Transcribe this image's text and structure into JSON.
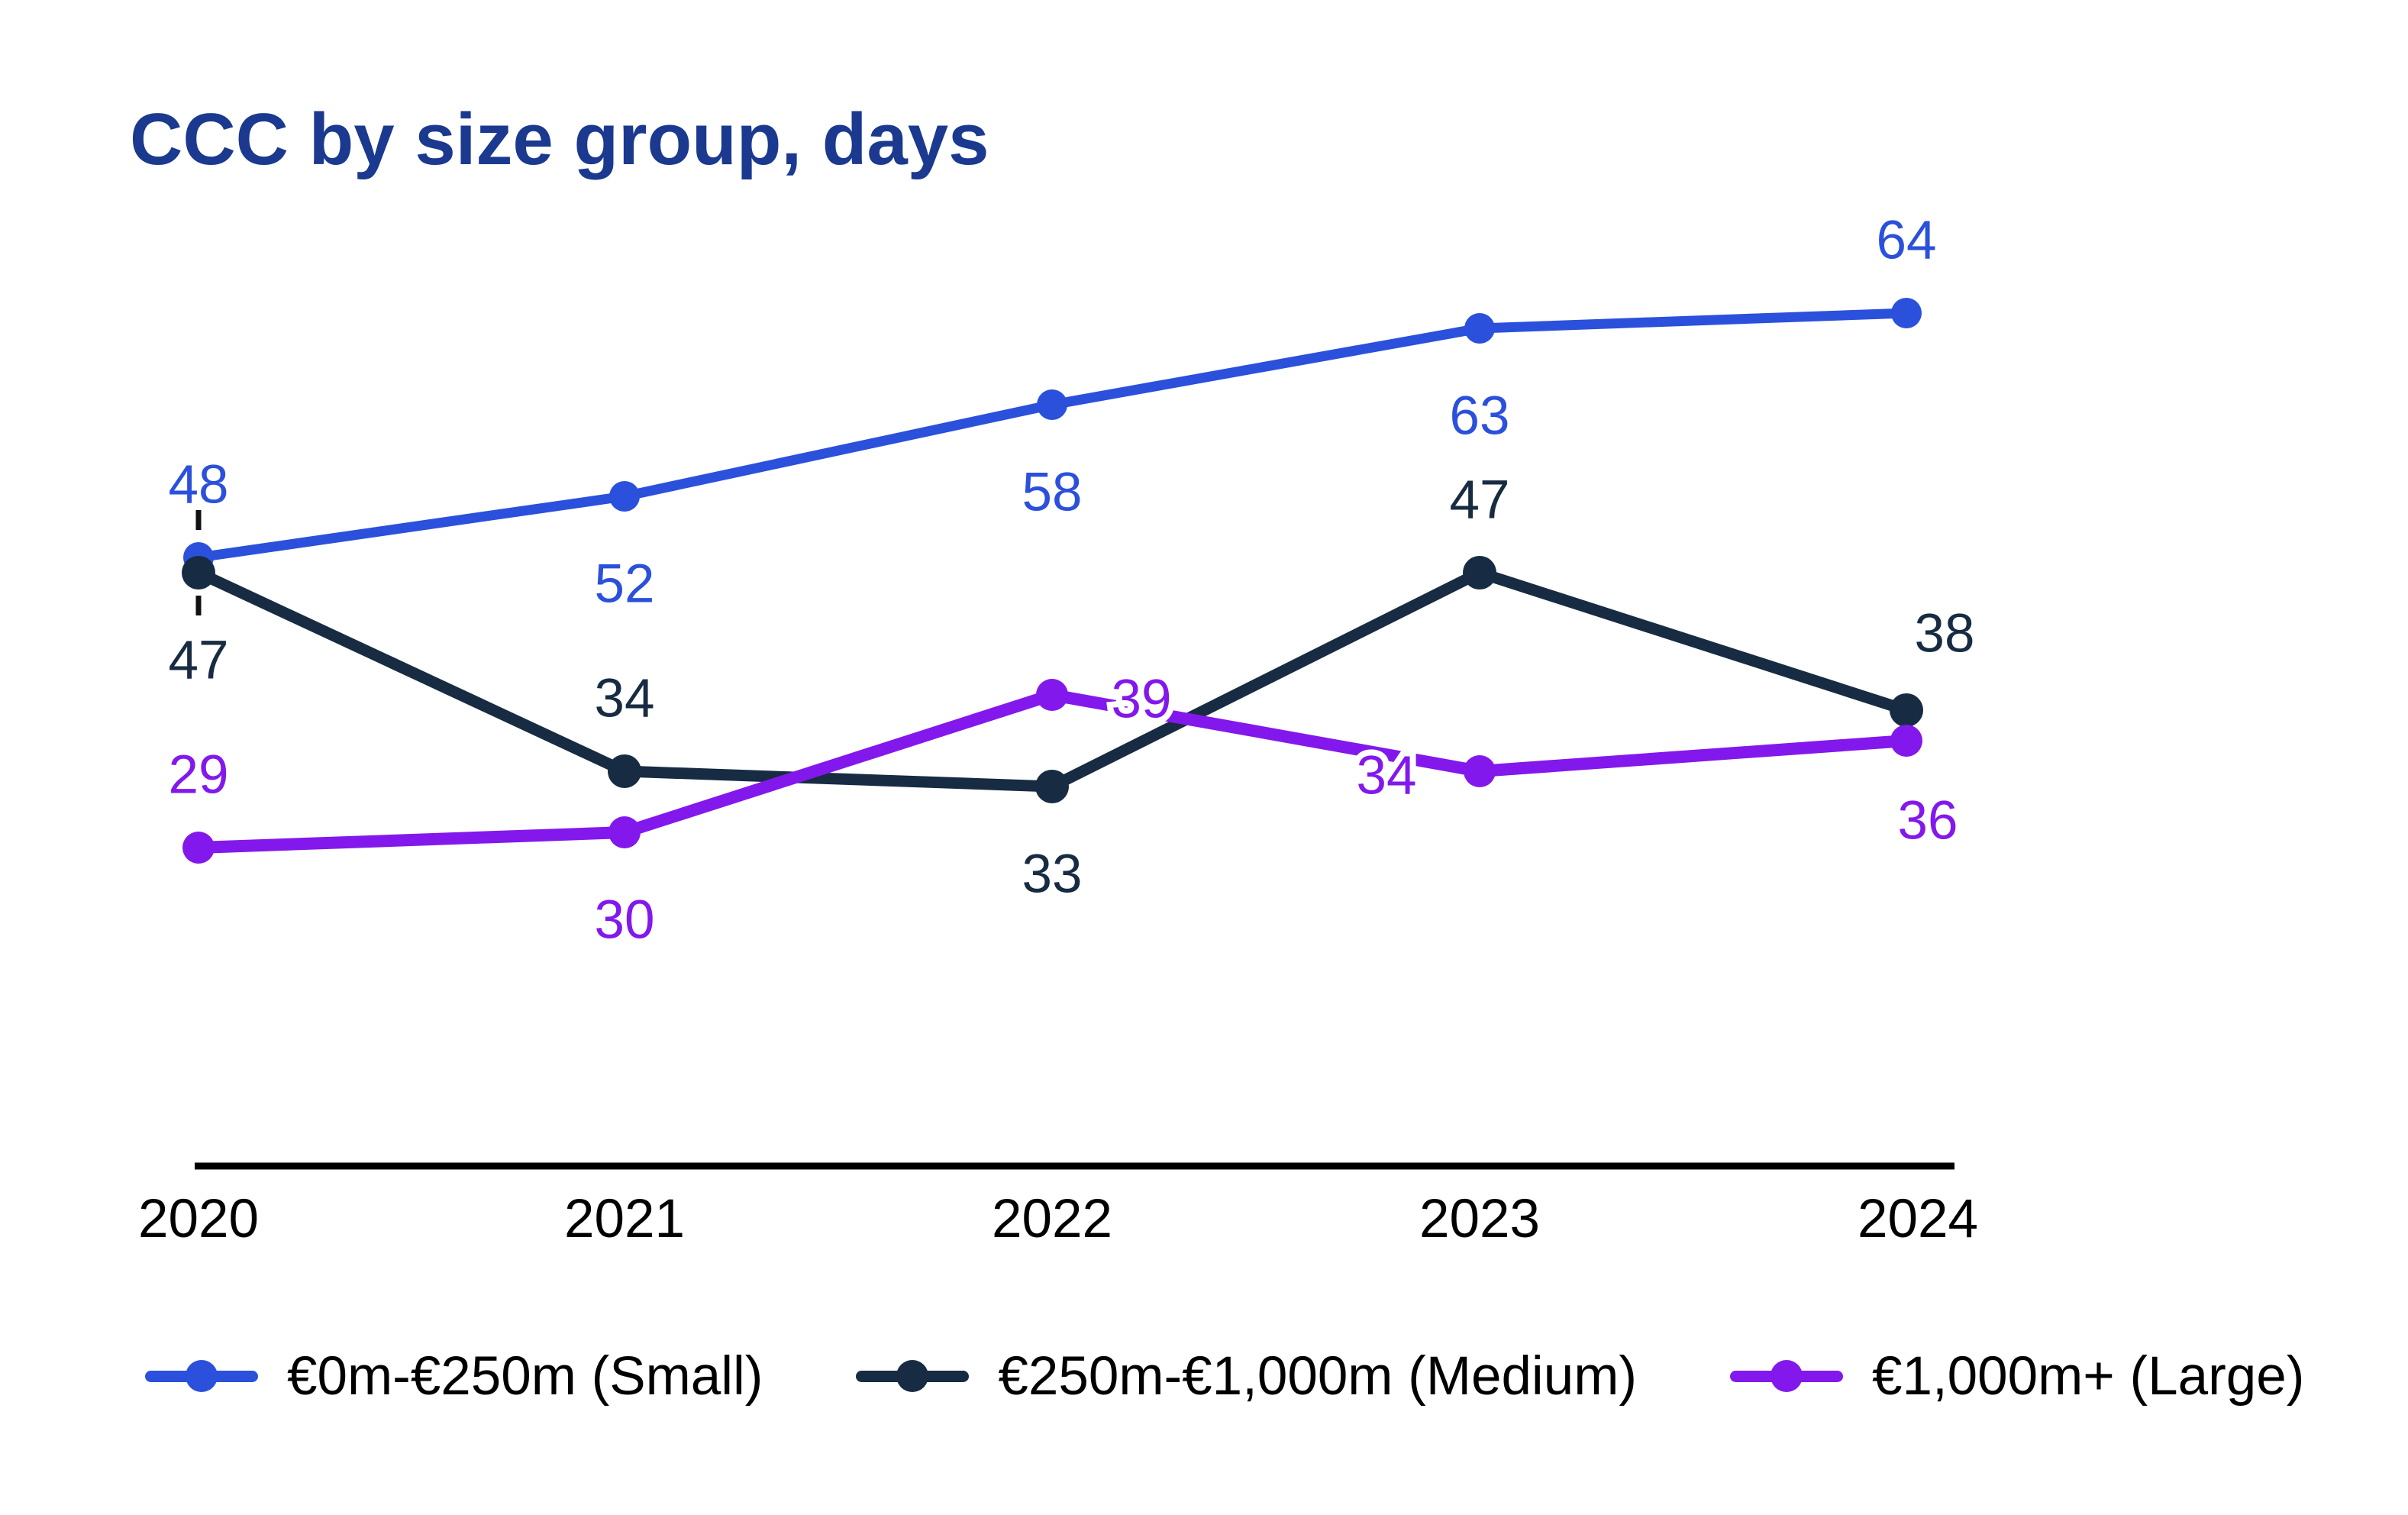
{
  "title": "CCC by size group, days",
  "chart_data": {
    "type": "line",
    "title": "CCC by size group, days",
    "xlabel": "",
    "ylabel": "",
    "unit": "days",
    "categories": [
      "2020",
      "2021",
      "2022",
      "2023",
      "2024"
    ],
    "series": [
      {
        "name": "€0m-€250m (Small)",
        "color": "#2B50DB",
        "values": [
          48,
          52,
          58,
          63,
          64
        ],
        "label_positions": [
          "above",
          "below",
          "below",
          "below",
          "above"
        ]
      },
      {
        "name": "€250m-€1,000m (Medium)",
        "color": "#172B42",
        "values": [
          47,
          34,
          33,
          47,
          38
        ],
        "label_positions": [
          "below",
          "above",
          "below",
          "above",
          "above-right"
        ]
      },
      {
        "name": "€1,000m+ (Large)",
        "color": "#8318EC",
        "values": [
          29,
          30,
          39,
          34,
          36
        ],
        "label_positions": [
          "above",
          "below",
          "right",
          "left",
          "below-right"
        ]
      }
    ],
    "ylim": [
      20,
      70
    ],
    "grid": false,
    "legend_position": "bottom",
    "annotations": {
      "callout_year": "2020",
      "callout_style": "dashed-leader",
      "callout_color": "#111111"
    },
    "axis_color": "#000000"
  }
}
